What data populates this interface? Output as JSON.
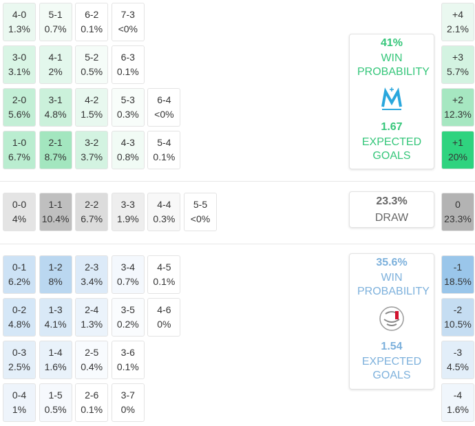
{
  "home": {
    "rows": [
      [
        {
          "score": "4-0",
          "prob": "1.3%",
          "color": "#eaf8f0"
        },
        {
          "score": "5-1",
          "prob": "0.7%",
          "color": "#f3fbf6"
        },
        {
          "score": "6-2",
          "prob": "0.1%",
          "color": "#ffffff"
        },
        {
          "score": "7-3",
          "prob": "<0%",
          "color": "#ffffff"
        }
      ],
      [
        {
          "score": "3-0",
          "prob": "3.1%",
          "color": "#d9f5e5"
        },
        {
          "score": "4-1",
          "prob": "2%",
          "color": "#e3f7ec"
        },
        {
          "score": "5-2",
          "prob": "0.5%",
          "color": "#f5fcf8"
        },
        {
          "score": "6-3",
          "prob": "0.1%",
          "color": "#ffffff"
        }
      ],
      [
        {
          "score": "2-0",
          "prob": "5.6%",
          "color": "#c3efd6"
        },
        {
          "score": "3-1",
          "prob": "4.8%",
          "color": "#cbf1db"
        },
        {
          "score": "4-2",
          "prob": "1.5%",
          "color": "#e8f8ef"
        },
        {
          "score": "5-3",
          "prob": "0.3%",
          "color": "#f8fdfa"
        },
        {
          "score": "6-4",
          "prob": "<0%",
          "color": "#ffffff"
        }
      ],
      [
        {
          "score": "1-0",
          "prob": "6.7%",
          "color": "#baedd0"
        },
        {
          "score": "2-1",
          "prob": "8.7%",
          "color": "#a3e6bf"
        },
        {
          "score": "3-2",
          "prob": "3.7%",
          "color": "#d3f3e1"
        },
        {
          "score": "4-3",
          "prob": "0.8%",
          "color": "#f1fbf5"
        },
        {
          "score": "5-4",
          "prob": "0.1%",
          "color": "#ffffff"
        }
      ]
    ],
    "summary": {
      "win_pct": "41%",
      "win_label": "WIN PROBABILITY",
      "xg": "1.67",
      "xg_label": "EXPECTED GOALS",
      "color": "#35c67a"
    },
    "margins": [
      {
        "label": "+4",
        "prob": "2.1%",
        "color": "#eaf8f0"
      },
      {
        "label": "+3",
        "prob": "5.7%",
        "color": "#d3f3e1"
      },
      {
        "label": "+2",
        "prob": "12.3%",
        "color": "#a6e7c1"
      },
      {
        "label": "+1",
        "prob": "20%",
        "color": "#2fd37f"
      }
    ]
  },
  "draw": {
    "row": [
      {
        "score": "0-0",
        "prob": "4%",
        "color": "#e4e4e4"
      },
      {
        "score": "1-1",
        "prob": "10.4%",
        "color": "#bfbfbf"
      },
      {
        "score": "2-2",
        "prob": "6.7%",
        "color": "#dcdcdc"
      },
      {
        "score": "3-3",
        "prob": "1.9%",
        "color": "#eeeeee"
      },
      {
        "score": "4-4",
        "prob": "0.3%",
        "color": "#f8f8f8"
      },
      {
        "score": "5-5",
        "prob": "<0%",
        "color": "#ffffff"
      }
    ],
    "summary": {
      "pct": "23.3%",
      "label": "DRAW",
      "color": "#666666"
    },
    "margin": {
      "label": "0",
      "prob": "23.3%",
      "color": "#b3b3b3"
    }
  },
  "away": {
    "rows": [
      [
        {
          "score": "0-1",
          "prob": "6.2%",
          "color": "#cde2f5"
        },
        {
          "score": "1-2",
          "prob": "8%",
          "color": "#bad7f0"
        },
        {
          "score": "2-3",
          "prob": "3.4%",
          "color": "#dceaf8"
        },
        {
          "score": "3-4",
          "prob": "0.7%",
          "color": "#f4f8fd"
        },
        {
          "score": "4-5",
          "prob": "0.1%",
          "color": "#ffffff"
        }
      ],
      [
        {
          "score": "0-2",
          "prob": "4.8%",
          "color": "#d5e7f7"
        },
        {
          "score": "1-3",
          "prob": "4.1%",
          "color": "#d9e9f7"
        },
        {
          "score": "2-4",
          "prob": "1.3%",
          "color": "#ebf3fb"
        },
        {
          "score": "3-5",
          "prob": "0.2%",
          "color": "#fafcfe"
        },
        {
          "score": "4-6",
          "prob": "0%",
          "color": "#ffffff"
        }
      ],
      [
        {
          "score": "0-3",
          "prob": "2.5%",
          "color": "#e4eff9"
        },
        {
          "score": "1-4",
          "prob": "1.6%",
          "color": "#e9f2fa"
        },
        {
          "score": "2-5",
          "prob": "0.4%",
          "color": "#f8fbfe"
        },
        {
          "score": "3-6",
          "prob": "0.1%",
          "color": "#ffffff"
        }
      ],
      [
        {
          "score": "0-4",
          "prob": "1%",
          "color": "#eef4fb"
        },
        {
          "score": "1-5",
          "prob": "0.5%",
          "color": "#f6f9fd"
        },
        {
          "score": "2-6",
          "prob": "0.1%",
          "color": "#ffffff"
        },
        {
          "score": "3-7",
          "prob": "0%",
          "color": "#ffffff"
        }
      ]
    ],
    "summary": {
      "win_pct": "35.6%",
      "win_label": "WIN PROBABILITY",
      "xg": "1.54",
      "xg_label": "EXPECTED GOALS",
      "color": "#7db1dc"
    },
    "margins": [
      {
        "label": "-1",
        "prob": "18.5%",
        "color": "#9ac6ea"
      },
      {
        "label": "-2",
        "prob": "10.5%",
        "color": "#c5ddf2"
      },
      {
        "label": "-3",
        "prob": "4.5%",
        "color": "#e2eef9"
      },
      {
        "label": "-4",
        "prob": "1.6%",
        "color": "#f0f6fc"
      }
    ]
  }
}
